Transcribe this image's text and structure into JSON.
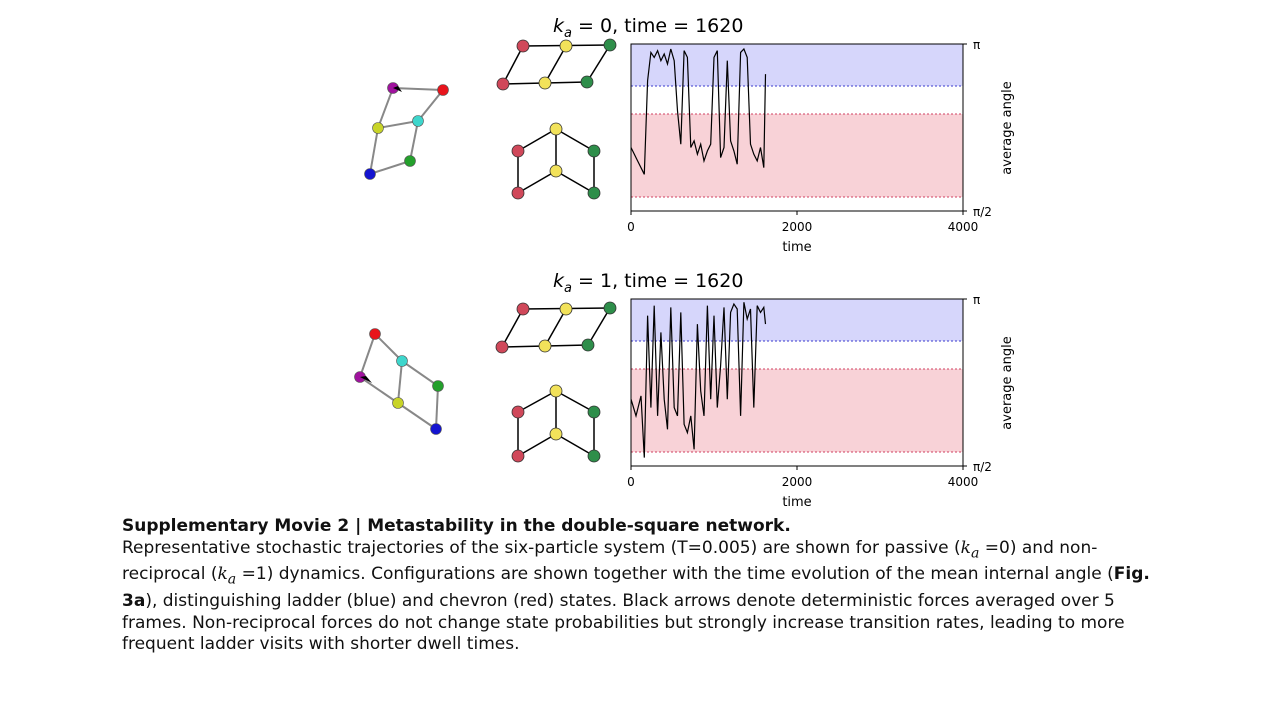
{
  "panels": [
    {
      "title_prefix": "k",
      "title_sub": "a",
      "title_rest": " = 0,  time = 1620",
      "chart_data": {
        "type": "line",
        "xlabel": "time",
        "ylabel": "average angle",
        "xlim": [
          0,
          4000
        ],
        "ylim_labels": [
          "π/2",
          "π"
        ],
        "xticks": [
          "0",
          "2000",
          "4000"
        ],
        "bands": [
          {
            "state": "ladder",
            "color": "#d6d6fb",
            "range": [
              0.76,
              1.0
            ]
          },
          {
            "state": "chevron",
            "color": "#f8d2d7",
            "range": [
              0.08,
              0.58
            ]
          }
        ],
        "x": [
          0,
          80,
          160,
          200,
          240,
          280,
          320,
          360,
          400,
          440,
          480,
          520,
          560,
          600,
          640,
          680,
          720,
          760,
          800,
          840,
          880,
          920,
          960,
          1000,
          1040,
          1080,
          1120,
          1160,
          1200,
          1240,
          1280,
          1320,
          1360,
          1400,
          1440,
          1480,
          1520,
          1560,
          1600,
          1620
        ],
        "y": [
          0.38,
          0.3,
          0.22,
          0.78,
          0.95,
          0.92,
          0.96,
          0.9,
          0.94,
          0.88,
          0.97,
          0.9,
          0.6,
          0.4,
          0.96,
          0.92,
          0.38,
          0.42,
          0.34,
          0.4,
          0.3,
          0.36,
          0.4,
          0.92,
          0.96,
          0.32,
          0.38,
          0.9,
          0.42,
          0.36,
          0.28,
          0.95,
          0.97,
          0.92,
          0.4,
          0.34,
          0.3,
          0.38,
          0.26,
          0.82
        ]
      }
    },
    {
      "title_prefix": "k",
      "title_sub": "a",
      "title_rest": " = 1,  time = 1620",
      "chart_data": {
        "type": "line",
        "xlabel": "time",
        "ylabel": "average angle",
        "xlim": [
          0,
          4000
        ],
        "ylim_labels": [
          "π/2",
          "π"
        ],
        "xticks": [
          "0",
          "2000",
          "4000"
        ],
        "bands": [
          {
            "state": "ladder",
            "color": "#d6d6fb",
            "range": [
              0.76,
              1.0
            ]
          },
          {
            "state": "chevron",
            "color": "#f8d2d7",
            "range": [
              0.08,
              0.58
            ]
          }
        ],
        "x": [
          0,
          60,
          120,
          160,
          200,
          240,
          280,
          320,
          360,
          400,
          440,
          480,
          520,
          560,
          600,
          640,
          680,
          720,
          760,
          800,
          840,
          880,
          920,
          960,
          1000,
          1040,
          1080,
          1120,
          1160,
          1200,
          1240,
          1280,
          1320,
          1360,
          1400,
          1440,
          1480,
          1520,
          1560,
          1600,
          1620
        ],
        "y": [
          0.4,
          0.3,
          0.42,
          0.05,
          0.9,
          0.35,
          0.96,
          0.3,
          0.8,
          0.4,
          0.22,
          0.95,
          0.35,
          0.3,
          0.92,
          0.25,
          0.2,
          0.3,
          0.1,
          0.85,
          0.45,
          0.3,
          0.96,
          0.4,
          0.9,
          0.35,
          0.6,
          0.95,
          0.4,
          0.92,
          0.97,
          0.94,
          0.3,
          0.98,
          0.88,
          0.94,
          0.35,
          0.96,
          0.92,
          0.95,
          0.85
        ]
      }
    }
  ],
  "caption": {
    "title": "Supplementary Movie 2 | Metastability in the double-square network.",
    "p1": "Representative stochastic trajectories of the six-particle system (T=0.005) are shown for passive (",
    "ka": "k",
    "ka_sub": "a",
    "p2": " =0) and non-reciprocal (",
    "p3": " =1) dynamics. Configurations are shown together with the time evolution of the mean internal angle (",
    "figref": "Fig. 3a",
    "p4": "), distinguishing ladder (blue) and chevron (red) states. Black arrows denote deterministic forces averaged over 5 frames. Non-reciprocal forces do not change state probabilities but strongly increase transition rates, leading to more frequent ladder visits with shorter dwell times."
  },
  "colors": {
    "red": "#e8141c",
    "magenta": "#a0129e",
    "cyan": "#3ed6cc",
    "yellow_green": "#c8d428",
    "green": "#24a02c",
    "blue": "#1414d0",
    "node_red": "#d0485a",
    "node_yellow": "#f2e25a",
    "node_green": "#2e8e4a"
  }
}
